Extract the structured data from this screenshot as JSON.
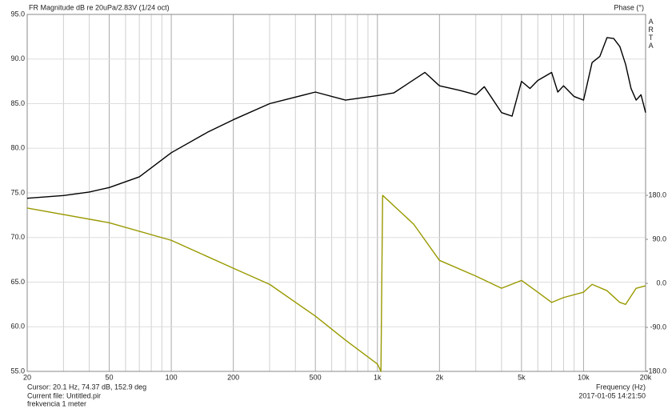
{
  "chart_data": {
    "type": "line",
    "title": "FR Magnitude dB re 20uPa/2.83V (1/24 oct)",
    "y2_label": "Phase (°)",
    "brand": "ARTA",
    "x_label": "Frequency (Hz)",
    "cursor": "Cursor: 20.1 Hz, 74.37 dB, 152.9 deg",
    "file": "Current file: Untitled.pir",
    "note": "frekvencia 1 meter",
    "timestamp": "2017-01-05  14:21:50",
    "xscale": "log",
    "grid": true,
    "xlim": [
      20,
      20000
    ],
    "xticks": [
      20,
      50,
      100,
      200,
      500,
      {
        "value": 1000,
        "label": "1k"
      },
      {
        "value": 2000,
        "label": "2k"
      },
      {
        "value": 5000,
        "label": "5k"
      },
      {
        "value": 10000,
        "label": "10k"
      },
      {
        "value": 20000,
        "label": "20k"
      }
    ],
    "xminorticks": [
      30,
      40,
      60,
      70,
      80,
      90,
      300,
      400,
      600,
      700,
      800,
      900,
      3000,
      4000,
      6000,
      7000,
      8000,
      9000
    ],
    "ylim": [
      55,
      95
    ],
    "yticks": [
      {
        "value": 55,
        "label": "55.0"
      },
      {
        "value": 60,
        "label": "60.0"
      },
      {
        "value": 65,
        "label": "65.0"
      },
      {
        "value": 70,
        "label": "70.0"
      },
      {
        "value": 75,
        "label": "75.0"
      },
      {
        "value": 80,
        "label": "80.0"
      },
      {
        "value": 85,
        "label": "85.0"
      },
      {
        "value": 90,
        "label": "90.0"
      },
      {
        "value": 95,
        "label": "95.0"
      }
    ],
    "y2lim": [
      -180,
      550
    ],
    "y2ticks": [
      {
        "value": -180,
        "label": "-180.0"
      },
      {
        "value": -90,
        "label": "-90.0"
      },
      {
        "value": 0,
        "label": "0.0"
      },
      {
        "value": 90,
        "label": "90.0"
      },
      {
        "value": 180,
        "label": "180.0"
      }
    ],
    "series": [
      {
        "color": "#000000",
        "x": [
          20,
          30,
          40,
          50,
          70,
          100,
          150,
          200,
          300,
          500,
          700,
          1000,
          1200,
          1700,
          2000,
          2500,
          3000,
          3300,
          4000,
          4500,
          5000,
          5500,
          6000,
          7000,
          7500,
          8000,
          9000,
          10000,
          11000,
          12000,
          13000,
          14000,
          15000,
          16000,
          17000,
          18000,
          19000,
          20000
        ],
        "values": [
          74.4,
          74.7,
          75.1,
          75.6,
          76.8,
          79.5,
          81.8,
          83.2,
          85.0,
          86.3,
          85.4,
          85.9,
          86.2,
          88.5,
          87.0,
          86.5,
          86.0,
          86.9,
          84.0,
          83.6,
          87.5,
          86.7,
          87.6,
          88.5,
          86.3,
          87.0,
          85.8,
          85.4,
          89.6,
          90.3,
          92.4,
          92.3,
          91.4,
          89.4,
          86.7,
          85.4,
          86.0,
          84.0
        ]
      },
      {
        "color": "#999900",
        "axis": "y2",
        "x": [
          20,
          50,
          100,
          200,
          300,
          500,
          700,
          1000,
          1040,
          1060,
          1500,
          2000,
          3000,
          4000,
          5000,
          6000,
          7000,
          8000,
          10000,
          11000,
          13000,
          15000,
          16000,
          18000,
          20000
        ],
        "values": [
          154,
          124,
          88,
          31,
          -2,
          -67,
          -116,
          -165,
          -180,
          180,
          121,
          47,
          15,
          -10,
          6,
          -18,
          -39,
          -29,
          -18,
          -2,
          -15,
          -39,
          -43,
          -10,
          -5
        ]
      }
    ]
  }
}
